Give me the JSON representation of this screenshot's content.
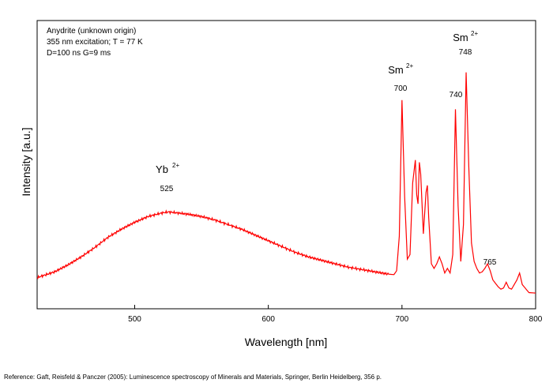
{
  "chart_data": {
    "type": "line",
    "info_lines": [
      "Anydrite (unknown origin)",
      "355 nm excitation; T = 77 K",
      "D=100 ns G=9 ms"
    ],
    "xlabel": "Wavelength [nm]",
    "ylabel": "Intensity [a.u.]",
    "xlim": [
      427,
      800
    ],
    "ylim": [
      0,
      100
    ],
    "x_ticks": [
      500,
      600,
      700,
      800
    ],
    "y_ticks_labeled": false,
    "grid": false,
    "series": [
      {
        "color": "#ff0000",
        "x": [
          427,
          440,
          450,
          460,
          470,
          480,
          490,
          500,
          510,
          520,
          525,
          530,
          540,
          550,
          560,
          570,
          580,
          590,
          600,
          610,
          620,
          630,
          640,
          650,
          660,
          670,
          680,
          690,
          694,
          696,
          698,
          700,
          702,
          704,
          706,
          708,
          710,
          711,
          712,
          713,
          714,
          716,
          718,
          719,
          720,
          722,
          724,
          726,
          728,
          730,
          732,
          734,
          736,
          738,
          740,
          742,
          744,
          746,
          748,
          750,
          752,
          754,
          756,
          758,
          760,
          762,
          764,
          766,
          768,
          770,
          772,
          774,
          776,
          778,
          780,
          782,
          784,
          786,
          788,
          790,
          795,
          800
        ],
        "y": [
          7,
          9.5,
          12.5,
          16,
          20,
          24.5,
          28,
          31,
          33.5,
          35,
          35.5,
          35.2,
          34.5,
          33.5,
          32,
          30,
          28,
          25.5,
          23,
          20.5,
          18,
          16,
          14.5,
          13,
          11.5,
          10.5,
          9.5,
          8.5,
          8.3,
          10,
          25,
          84,
          42,
          15,
          17,
          48,
          58,
          43,
          39,
          57,
          52,
          26,
          44,
          47,
          33,
          13,
          11,
          13,
          16,
          13,
          9,
          11,
          9,
          17,
          80,
          38,
          14,
          30,
          96,
          55,
          22,
          14,
          11,
          9,
          9.5,
          11,
          13,
          10,
          6,
          4.5,
          3,
          2,
          2.5,
          5,
          2.5,
          2,
          4,
          6,
          9,
          4,
          0.5,
          0.3
        ]
      }
    ],
    "annotations": [
      {
        "label": "Yb",
        "superscript": "2+",
        "value_label": "525",
        "x": 525
      },
      {
        "label": "Sm",
        "superscript": "2+",
        "value_label": "700",
        "x": 700
      },
      {
        "label": "740",
        "x": 740
      },
      {
        "label": "Sm",
        "superscript": "2+",
        "value_label": "748",
        "x": 748
      },
      {
        "label": "765",
        "x": 765
      }
    ]
  },
  "reference": "Reference: Gaft, Reisfeld & Panczer (2005): Luminescence spectroscopy of Minerals and Materials, Springer, Berlin Heidelberg, 356 p."
}
